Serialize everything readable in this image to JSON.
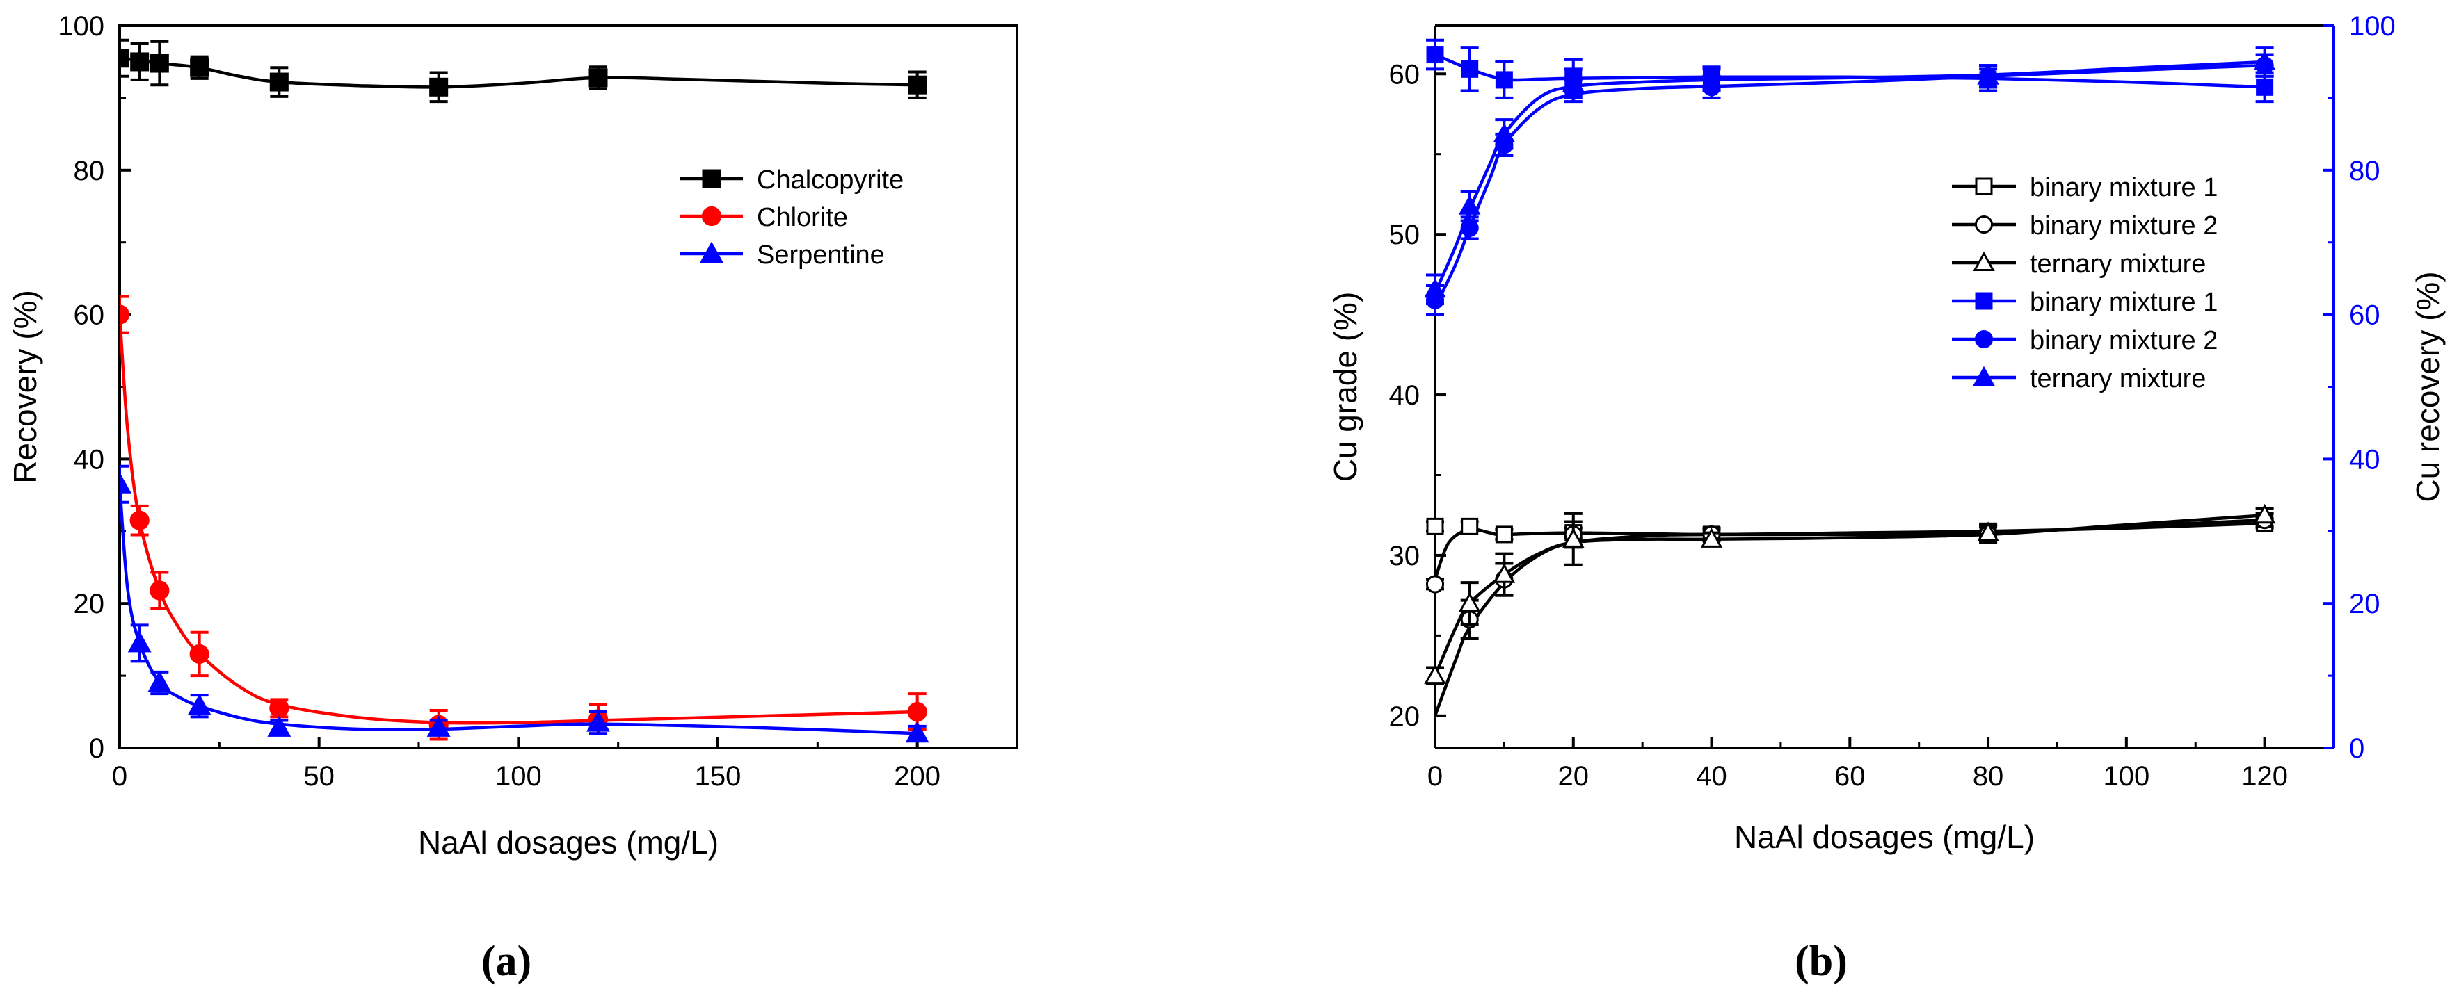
{
  "chart_data": [
    {
      "panel": "(a)",
      "type": "line",
      "xlabel": "NaAl dosages (mg/L)",
      "ylabel": "Recovery (%)",
      "xlim": [
        0,
        225
      ],
      "ylim": [
        0,
        100
      ],
      "xticks": [
        0,
        50,
        100,
        150,
        200
      ],
      "yticks": [
        0,
        20,
        40,
        60,
        80,
        100
      ],
      "legend_position": "upper-right",
      "series": [
        {
          "name": "Chalcopyrite",
          "color": "#000000",
          "marker": "square-filled",
          "x": [
            0,
            5,
            10,
            20,
            40,
            80,
            120,
            200
          ],
          "y": [
            95.5,
            95,
            94.8,
            94.2,
            92.2,
            91.5,
            92.8,
            91.8
          ],
          "err": [
            2.5,
            2.5,
            3,
            1.5,
            2,
            2,
            1.5,
            1.8
          ],
          "curve_x": [
            0,
            5,
            10,
            20,
            30,
            40,
            60,
            80,
            100,
            120,
            140,
            160,
            180,
            200
          ],
          "curve_y": [
            95.5,
            95.2,
            94.8,
            94.2,
            93.0,
            92.2,
            91.7,
            91.5,
            92.0,
            92.8,
            92.6,
            92.3,
            92.0,
            91.8
          ]
        },
        {
          "name": "Chlorite",
          "color": "#ff0000",
          "marker": "circle-filled",
          "x": [
            0,
            5,
            10,
            20,
            40,
            80,
            120,
            200
          ],
          "y": [
            60,
            31.5,
            21.8,
            13,
            5.5,
            3.2,
            4,
            5
          ],
          "err": [
            2.5,
            2,
            2.5,
            3,
            1.2,
            2,
            2,
            2.5
          ],
          "curve_x": [
            0,
            2,
            5,
            10,
            15,
            20,
            30,
            40,
            60,
            80,
            100,
            120,
            160,
            200
          ],
          "curve_y": [
            60,
            44,
            31.5,
            21.8,
            16.5,
            13,
            8.5,
            6,
            4.2,
            3.5,
            3.5,
            3.8,
            4.4,
            5
          ]
        },
        {
          "name": "Serpentine",
          "color": "#0000ff",
          "marker": "triangle-filled",
          "x": [
            0,
            5,
            10,
            20,
            40,
            80,
            120,
            200
          ],
          "y": [
            36.5,
            14.5,
            9,
            5.8,
            2.8,
            2.8,
            3.5,
            2
          ],
          "err": [
            2.5,
            2.5,
            1.5,
            1.5,
            1,
            1,
            1.5,
            1
          ],
          "curve_x": [
            0,
            2,
            5,
            10,
            15,
            20,
            30,
            40,
            60,
            80,
            100,
            120,
            160,
            200
          ],
          "curve_y": [
            36.5,
            22,
            14.5,
            9,
            7,
            5.8,
            4.2,
            3.3,
            2.6,
            2.6,
            3.0,
            3.3,
            2.8,
            2
          ]
        }
      ]
    },
    {
      "panel": "(b)",
      "type": "line",
      "xlabel": "NaAl dosages (mg/L)",
      "ylabel": "Cu grade (%)",
      "ylabel_right": "Cu recovery (%)",
      "xlim": [
        0,
        130
      ],
      "ylim": [
        18,
        63
      ],
      "ylim_right": [
        0,
        100
      ],
      "xticks": [
        0,
        20,
        40,
        60,
        80,
        100,
        120
      ],
      "yticks": [
        20,
        30,
        40,
        50,
        60
      ],
      "yticks_right": [
        0,
        20,
        40,
        60,
        80,
        100
      ],
      "legend_position": "right-middle",
      "series": [
        {
          "name": "binary mixture 1",
          "axis": "left",
          "color": "#000000",
          "marker": "square-open",
          "x": [
            0,
            5,
            10,
            20,
            40,
            80,
            120
          ],
          "y": [
            31.8,
            31.8,
            31.3,
            31.4,
            31.3,
            31.5,
            32
          ],
          "err": [
            0.3,
            0.3,
            0.3,
            0.3,
            0.3,
            0.4,
            0.3
          ],
          "curve_x": [
            0,
            2,
            5,
            8,
            10,
            20,
            40,
            60,
            80,
            100,
            120
          ],
          "curve_y": [
            28.5,
            30.8,
            31.6,
            31.4,
            31.3,
            31.4,
            31.3,
            31.4,
            31.5,
            31.7,
            32
          ]
        },
        {
          "name": "binary mixture 2",
          "axis": "left",
          "color": "#000000",
          "marker": "circle-open",
          "x": [
            0,
            5,
            10,
            20,
            40,
            80,
            120
          ],
          "y": [
            28.2,
            26,
            28.5,
            31.3,
            31.3,
            31.3,
            32.2
          ],
          "err": [
            0.3,
            1.2,
            1,
            0.8,
            0.4,
            0.5,
            0.4
          ],
          "curve_x": [
            0,
            3,
            5,
            10,
            15,
            20,
            30,
            40,
            60,
            80,
            100,
            120
          ],
          "curve_y": [
            20,
            23.5,
            25.5,
            28.3,
            30.0,
            30.8,
            31.2,
            31.3,
            31.3,
            31.4,
            31.8,
            32.2
          ]
        },
        {
          "name": "ternary mixture",
          "axis": "left",
          "color": "#000000",
          "marker": "triangle-open",
          "x": [
            0,
            5,
            10,
            20,
            40,
            80,
            120
          ],
          "y": [
            22.5,
            27,
            28.8,
            31,
            31,
            31.4,
            32.5
          ],
          "err": [
            0.5,
            1.3,
            1.3,
            1.6,
            0.4,
            0.5,
            0.4
          ],
          "curve_x": [
            0,
            3,
            5,
            10,
            15,
            20,
            30,
            40,
            60,
            80,
            100,
            120
          ],
          "curve_y": [
            22.5,
            25.5,
            27,
            28.8,
            30.1,
            30.8,
            31.0,
            31.0,
            31.1,
            31.3,
            31.9,
            32.5
          ]
        },
        {
          "name": "binary mixture 1",
          "axis": "right",
          "color": "#0000ff",
          "marker": "square-filled",
          "x": [
            0,
            5,
            10,
            20,
            40,
            80,
            120
          ],
          "y": [
            96,
            94,
            92.5,
            92.8,
            92.8,
            92.5,
            91.5
          ],
          "err": [
            2,
            3,
            2.5,
            2.5,
            1.5,
            1.5,
            2
          ],
          "curve_x": [
            0,
            5,
            10,
            15,
            20,
            40,
            60,
            80,
            100,
            120
          ],
          "curve_y": [
            96,
            94,
            92.6,
            92.6,
            92.7,
            92.9,
            92.9,
            92.7,
            92.2,
            91.5
          ]
        },
        {
          "name": "binary mixture 2",
          "axis": "right",
          "color": "#0000ff",
          "marker": "circle-filled",
          "x": [
            0,
            5,
            10,
            20,
            40,
            80,
            120
          ],
          "y": [
            62,
            72,
            83.5,
            91,
            91.5,
            93,
            94.5
          ],
          "err": [
            2,
            1.5,
            1.5,
            1.5,
            1.5,
            1.5,
            1.5
          ],
          "curve_x": [
            0,
            3,
            5,
            8,
            10,
            15,
            20,
            30,
            40,
            60,
            80,
            100,
            120
          ],
          "curve_y": [
            61,
            67,
            72,
            79,
            83.5,
            88.5,
            90.5,
            91.3,
            91.6,
            92.2,
            93,
            93.8,
            94.5
          ]
        },
        {
          "name": "ternary mixture",
          "axis": "right",
          "color": "#0000ff",
          "marker": "triangle-filled",
          "x": [
            0,
            5,
            10,
            20,
            40,
            80,
            120
          ],
          "y": [
            63.5,
            75,
            85,
            92,
            92.5,
            93,
            95
          ],
          "err": [
            2,
            2,
            2,
            2,
            1.5,
            1.5,
            2
          ],
          "curve_x": [
            0,
            3,
            5,
            8,
            10,
            15,
            20,
            30,
            40,
            60,
            80,
            100,
            120
          ],
          "curve_y": [
            63,
            69.5,
            74.5,
            81,
            85,
            90,
            91.6,
            92.2,
            92.5,
            92.8,
            93.2,
            94.1,
            95
          ]
        }
      ]
    }
  ]
}
